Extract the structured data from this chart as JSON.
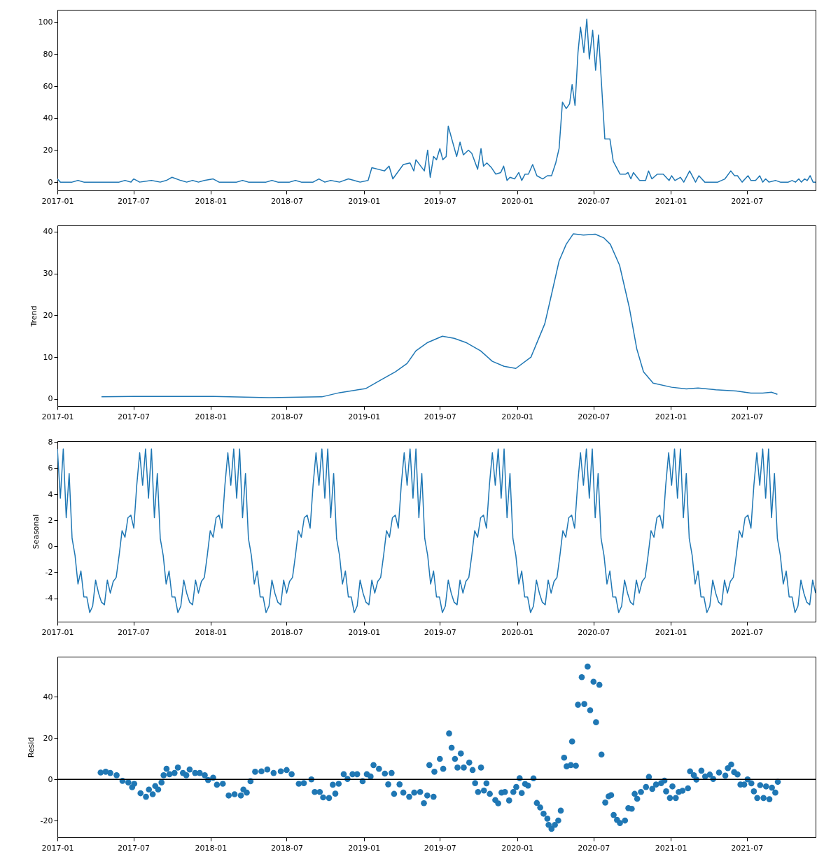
{
  "chart_data": [
    {
      "type": "line",
      "color": "#1f77b4",
      "xlim": [
        "2017-01-01",
        "2021-12-12"
      ],
      "ylim": [
        -5.2,
        107.8
      ],
      "xticks": [
        "2017-01",
        "2017-07",
        "2018-01",
        "2018-07",
        "2019-01",
        "2019-07",
        "2020-01",
        "2020-07",
        "2021-01",
        "2021-07"
      ],
      "yticks": [
        0,
        20,
        40,
        60,
        80,
        100
      ],
      "x": [
        "2017-01-01",
        "2017-01-08",
        "2017-02-05",
        "2017-02-19",
        "2017-03-05",
        "2017-05-28",
        "2017-06-11",
        "2017-06-25",
        "2017-07-02",
        "2017-07-16",
        "2017-08-13",
        "2017-09-03",
        "2017-09-17",
        "2017-10-01",
        "2017-10-22",
        "2017-11-05",
        "2017-11-19",
        "2017-12-03",
        "2017-12-17",
        "2018-01-07",
        "2018-01-21",
        "2018-03-04",
        "2018-03-18",
        "2018-04-01",
        "2018-05-13",
        "2018-05-27",
        "2018-06-10",
        "2018-07-08",
        "2018-07-22",
        "2018-08-05",
        "2018-09-02",
        "2018-09-16",
        "2018-09-30",
        "2018-10-14",
        "2018-11-04",
        "2018-11-25",
        "2018-12-09",
        "2018-12-23",
        "2019-01-11",
        "2019-01-20",
        "2019-02-19",
        "2019-03-02",
        "2019-03-11",
        "2019-04-05",
        "2019-04-21",
        "2019-04-30",
        "2019-05-05",
        "2019-05-25",
        "2019-06-02",
        "2019-06-08",
        "2019-06-16",
        "2019-06-23",
        "2019-07-01",
        "2019-07-08",
        "2019-07-16",
        "2019-07-21",
        "2019-08-10",
        "2019-08-18",
        "2019-08-26",
        "2019-09-07",
        "2019-09-15",
        "2019-09-29",
        "2019-10-07",
        "2019-10-13",
        "2019-10-21",
        "2019-11-01",
        "2019-11-11",
        "2019-11-23",
        "2019-11-30",
        "2019-12-08",
        "2019-12-15",
        "2019-12-26",
        "2020-01-05",
        "2020-01-12",
        "2020-01-20",
        "2020-01-28",
        "2020-02-07",
        "2020-02-17",
        "2020-03-02",
        "2020-03-13",
        "2020-03-23",
        "2020-04-02",
        "2020-04-10",
        "2020-04-18",
        "2020-04-27",
        "2020-05-05",
        "2020-05-11",
        "2020-05-18",
        "2020-05-25",
        "2020-05-31",
        "2020-06-08",
        "2020-06-15",
        "2020-06-21",
        "2020-06-29",
        "2020-07-06",
        "2020-07-13",
        "2020-07-28",
        "2020-08-09",
        "2020-08-17",
        "2020-09-02",
        "2020-09-16",
        "2020-09-21",
        "2020-09-28",
        "2020-10-04",
        "2020-10-19",
        "2020-11-02",
        "2020-11-09",
        "2020-11-17",
        "2020-11-30",
        "2020-12-14",
        "2020-12-28",
        "2021-01-03",
        "2021-01-11",
        "2021-01-24",
        "2021-02-01",
        "2021-02-15",
        "2021-03-01",
        "2021-03-09",
        "2021-03-23",
        "2021-04-23",
        "2021-05-10",
        "2021-05-24",
        "2021-06-02",
        "2021-06-09",
        "2021-06-20",
        "2021-07-04",
        "2021-07-11",
        "2021-07-22",
        "2021-08-01",
        "2021-08-08",
        "2021-08-15",
        "2021-08-23",
        "2021-09-08",
        "2021-09-19",
        "2021-10-08",
        "2021-10-17",
        "2021-10-25",
        "2021-11-02",
        "2021-11-08",
        "2021-11-16",
        "2021-11-22",
        "2021-11-29",
        "2021-12-06",
        "2021-12-12"
      ],
      "values": [
        2,
        0,
        0,
        1,
        0,
        0,
        1,
        0,
        2,
        0,
        1,
        0,
        1,
        3,
        1,
        0,
        1,
        0,
        1,
        2,
        0,
        0,
        1,
        0,
        0,
        1,
        0,
        0,
        1,
        0,
        0,
        2,
        0,
        1,
        0,
        2,
        1,
        0,
        1,
        9,
        7,
        10,
        2,
        11,
        12,
        7,
        14,
        7,
        20,
        3,
        16,
        14,
        21,
        14,
        16,
        35,
        16,
        25,
        17,
        20,
        18,
        8,
        21,
        10,
        12,
        9,
        5,
        6,
        10,
        1,
        3,
        2,
        6,
        1,
        5,
        5,
        11,
        4,
        2,
        4,
        4,
        12,
        21,
        50,
        46,
        49,
        61,
        48,
        81,
        97,
        81,
        102,
        77,
        95,
        70,
        92,
        27,
        27,
        13,
        5,
        5,
        6,
        2,
        6,
        1,
        1,
        7,
        2,
        5,
        5,
        1,
        4,
        1,
        3,
        0,
        7,
        0,
        4,
        0,
        0,
        2,
        7,
        4,
        4,
        0,
        4,
        1,
        1,
        4,
        0,
        2,
        0,
        1,
        0,
        0,
        1,
        0,
        2,
        0,
        2,
        1,
        4,
        0,
        0
      ]
    },
    {
      "type": "line",
      "color": "#1f77b4",
      "ylabel": "Trend",
      "xlim": [
        "2017-01-01",
        "2021-12-12"
      ],
      "ylim": [
        -1.7,
        41.5
      ],
      "xticks": [
        "2017-01",
        "2017-07",
        "2018-01",
        "2018-07",
        "2019-01",
        "2019-07",
        "2020-01",
        "2020-07",
        "2021-01",
        "2021-07"
      ],
      "yticks": [
        0,
        10,
        20,
        30,
        40
      ],
      "x": [
        "2017-04-16",
        "2017-07-02",
        "2018-01-07",
        "2018-05-20",
        "2018-09-23",
        "2018-11-04",
        "2019-01-06",
        "2019-02-10",
        "2019-03-17",
        "2019-04-14",
        "2019-05-05",
        "2019-06-02",
        "2019-07-07",
        "2019-08-04",
        "2019-09-01",
        "2019-10-06",
        "2019-11-03",
        "2019-12-01",
        "2019-12-29",
        "2020-02-03",
        "2020-03-07",
        "2020-03-23",
        "2020-04-10",
        "2020-04-27",
        "2020-05-14",
        "2020-06-07",
        "2020-07-05",
        "2020-07-26",
        "2020-08-10",
        "2020-09-01",
        "2020-09-24",
        "2020-10-12",
        "2020-10-28",
        "2020-11-20",
        "2021-01-03",
        "2021-02-07",
        "2021-03-07",
        "2021-04-18",
        "2021-06-06",
        "2021-07-11",
        "2021-08-08",
        "2021-08-29",
        "2021-09-12"
      ],
      "values": [
        0.5,
        0.6,
        0.6,
        0.3,
        0.5,
        1.5,
        2.5,
        4.5,
        6.5,
        8.5,
        11.5,
        13.5,
        15,
        14.5,
        13.5,
        11.5,
        9,
        7.8,
        7.3,
        10,
        18,
        25,
        33,
        37,
        39.5,
        39.2,
        39.4,
        38.5,
        37,
        32,
        22,
        12,
        6.5,
        3.8,
        2.8,
        2.4,
        2.6,
        2.2,
        1.9,
        1.4,
        1.4,
        1.6,
        1.1
      ]
    },
    {
      "type": "line",
      "color": "#1f77b4",
      "ylabel": "Seasonal",
      "xlim": [
        "2017-01-01",
        "2021-12-12"
      ],
      "ylim": [
        -5.8,
        8.1
      ],
      "xticks": [
        "2017-01",
        "2017-07",
        "2018-01",
        "2018-07",
        "2019-01",
        "2019-07",
        "2020-01",
        "2020-07",
        "2021-01",
        "2021-07"
      ],
      "yticks": [
        -4,
        -2,
        0,
        2,
        4,
        6,
        8
      ],
      "x": [
        "2017-01-01",
        "2017-01-08",
        "2017-01-15",
        "2017-01-22",
        "2017-01-29",
        "2017-02-05",
        "2017-02-12",
        "2017-02-19",
        "2017-02-26",
        "2017-03-05",
        "2017-03-12",
        "2017-03-19",
        "2017-03-26",
        "2017-04-02",
        "2017-04-09",
        "2017-04-16",
        "2017-04-23",
        "2017-04-30",
        "2017-05-07",
        "2017-05-14",
        "2017-05-21",
        "2017-05-28",
        "2017-06-04",
        "2017-06-11",
        "2017-06-18",
        "2017-06-25",
        "2017-07-02",
        "2017-07-09",
        "2017-07-16",
        "2017-07-23",
        "2017-07-30",
        "2017-08-06",
        "2017-08-13",
        "2017-08-20",
        "2017-08-27",
        "2017-09-03",
        "2017-09-10",
        "2017-09-17",
        "2017-09-24",
        "2017-10-01",
        "2017-10-08",
        "2017-10-15",
        "2017-10-22",
        "2017-10-29",
        "2017-11-05",
        "2017-11-12",
        "2017-11-19",
        "2017-11-26",
        "2017-12-03",
        "2017-12-10",
        "2017-12-17",
        "2017-12-24",
        "2017-12-31",
        "2018-01-07",
        "2018-01-14",
        "2018-01-21",
        "2018-01-28",
        "2018-02-04",
        "2018-02-11",
        "2018-02-18",
        "2018-02-25",
        "2018-03-04",
        "2018-03-11",
        "2018-03-18",
        "2018-03-25",
        "2018-04-01",
        "2018-04-08",
        "2018-04-15",
        "2018-04-22",
        "2018-04-29",
        "2018-05-06",
        "2018-05-13",
        "2018-05-20",
        "2018-05-27",
        "2018-06-03",
        "2018-06-10",
        "2018-06-17",
        "2018-06-24",
        "2018-07-01",
        "2018-07-08",
        "2018-07-15",
        "2018-07-22",
        "2018-07-29",
        "2018-08-05",
        "2018-08-12",
        "2018-08-19",
        "2018-08-26",
        "2018-09-02",
        "2018-09-09",
        "2018-09-16",
        "2018-09-23",
        "2018-09-30",
        "2018-10-07",
        "2018-10-14",
        "2018-10-21",
        "2018-10-28",
        "2018-11-04",
        "2018-11-11",
        "2018-11-18",
        "2018-11-25",
        "2018-12-02",
        "2018-12-09",
        "2018-12-16",
        "2018-12-23",
        "2018-12-30",
        "2019-01-06",
        "2019-01-13",
        "2019-01-20",
        "2019-01-27",
        "2019-02-03",
        "2019-02-10",
        "2019-02-17",
        "2019-02-24",
        "2019-03-03",
        "2019-03-10",
        "2019-03-17",
        "2019-03-24",
        "2019-03-31",
        "2019-04-07",
        "2019-04-14",
        "2019-04-21",
        "2019-04-28",
        "2019-05-05",
        "2019-05-12",
        "2019-05-19",
        "2019-05-26",
        "2019-06-02",
        "2019-06-09",
        "2019-06-16",
        "2019-06-23",
        "2019-06-30",
        "2019-07-07",
        "2019-07-14",
        "2019-07-21",
        "2019-07-28",
        "2019-08-04",
        "2019-08-11",
        "2019-08-18",
        "2019-08-25",
        "2019-09-01",
        "2019-09-08",
        "2019-09-15",
        "2019-09-22",
        "2019-09-29",
        "2019-10-06",
        "2019-10-13",
        "2019-10-20",
        "2019-10-27",
        "2019-11-03",
        "2019-11-10",
        "2019-11-17",
        "2019-11-24",
        "2019-12-01",
        "2019-12-08",
        "2019-12-15",
        "2019-12-22",
        "2019-12-29",
        "2020-01-05",
        "2020-01-12",
        "2020-01-19",
        "2020-01-26",
        "2020-02-02",
        "2020-02-09",
        "2020-02-16",
        "2020-02-23",
        "2020-03-01",
        "2020-03-08",
        "2020-03-15",
        "2020-03-22",
        "2020-03-29",
        "2020-04-05",
        "2020-04-12",
        "2020-04-19",
        "2020-04-26",
        "2020-05-03",
        "2020-05-10",
        "2020-05-17",
        "2020-05-24",
        "2020-05-31",
        "2020-06-07",
        "2020-06-14",
        "2020-06-21",
        "2020-06-28",
        "2020-07-05",
        "2020-07-12",
        "2020-07-19",
        "2020-07-26",
        "2020-08-02",
        "2020-08-09",
        "2020-08-16",
        "2020-08-23",
        "2020-08-30",
        "2020-09-06",
        "2020-09-13",
        "2020-09-20",
        "2020-09-27",
        "2020-10-04",
        "2020-10-11",
        "2020-10-18",
        "2020-10-25",
        "2020-11-01",
        "2020-11-08",
        "2020-11-15",
        "2020-11-22",
        "2020-11-29",
        "2020-12-06",
        "2020-12-13",
        "2020-12-20",
        "2020-12-27",
        "2021-01-03",
        "2021-01-10",
        "2021-01-17",
        "2021-01-24",
        "2021-01-31",
        "2021-02-07",
        "2021-02-14",
        "2021-02-21",
        "2021-02-28",
        "2021-03-07",
        "2021-03-14",
        "2021-03-21",
        "2021-03-28",
        "2021-04-04",
        "2021-04-11",
        "2021-04-18",
        "2021-04-25",
        "2021-05-02",
        "2021-05-09",
        "2021-05-16",
        "2021-05-23",
        "2021-05-30",
        "2021-06-06",
        "2021-06-13",
        "2021-06-20",
        "2021-06-27",
        "2021-07-04",
        "2021-07-11",
        "2021-07-18",
        "2021-07-25",
        "2021-08-01",
        "2021-08-08",
        "2021-08-15",
        "2021-08-22",
        "2021-08-29",
        "2021-09-05",
        "2021-09-12",
        "2021-09-19",
        "2021-09-26",
        "2021-10-03",
        "2021-10-10",
        "2021-10-17",
        "2021-10-24",
        "2021-10-31",
        "2021-11-07",
        "2021-11-14",
        "2021-11-21",
        "2021-11-28",
        "2021-12-05",
        "2021-12-12"
      ],
      "values": [
        7.5,
        3.7,
        7.5,
        2.2,
        5.6,
        0.6,
        -0.7,
        -2.9,
        -1.9,
        -3.9,
        -3.9,
        -5.1,
        -4.6,
        -2.6,
        -3.6,
        -4.3,
        -4.5,
        -2.6,
        -3.6,
        -2.7,
        -2.4,
        -0.7,
        1.2,
        0.7,
        2.2,
        2.4,
        1.4,
        4.7,
        7.2,
        4.7,
        7.5,
        3.7,
        7.5,
        2.2,
        5.6,
        0.6,
        -0.7,
        -2.9,
        -1.9,
        -3.9,
        -3.9,
        -5.1,
        -4.6,
        -2.6,
        -3.6,
        -4.3,
        -4.5,
        -2.6,
        -3.6,
        -2.7,
        -2.4,
        -0.7,
        1.2,
        0.7,
        2.2,
        2.4,
        1.4,
        4.7,
        7.2,
        4.7,
        7.5,
        3.7,
        7.5,
        2.2,
        5.6,
        0.6,
        -0.7,
        -2.9,
        -1.9,
        -3.9,
        -3.9,
        -5.1,
        -4.6,
        -2.6,
        -3.6,
        -4.3,
        -4.5,
        -2.6,
        -3.6,
        -2.7,
        -2.4,
        -0.7,
        1.2,
        0.7,
        2.2,
        2.4,
        1.4,
        4.7,
        7.2,
        4.7,
        7.5,
        3.7,
        7.5,
        2.2,
        5.6,
        0.6,
        -0.7,
        -2.9,
        -1.9,
        -3.9,
        -3.9,
        -5.1,
        -4.6,
        -2.6,
        -3.6,
        -4.3,
        -4.5,
        -2.6,
        -3.6,
        -2.7,
        -2.4,
        -0.7,
        1.2,
        0.7,
        2.2,
        2.4,
        1.4,
        4.7,
        7.2,
        4.7,
        7.5,
        3.7,
        7.5,
        2.2,
        5.6,
        0.6,
        -0.7,
        -2.9,
        -1.9,
        -3.9,
        -3.9,
        -5.1,
        -4.6,
        -2.6,
        -3.6,
        -4.3,
        -4.5,
        -2.6,
        -3.6,
        -2.7,
        -2.4,
        -0.7,
        1.2,
        0.7,
        2.2,
        2.4,
        1.4,
        4.7,
        7.2,
        4.7,
        7.5,
        3.7,
        7.5,
        2.2,
        5.6,
        0.6,
        -0.7,
        -2.9,
        -1.9,
        -3.9,
        -3.9,
        -5.1,
        -4.6,
        -2.6,
        -3.6,
        -4.3,
        -4.5,
        -2.6,
        -3.6,
        -2.7,
        -2.4,
        -0.7,
        1.2,
        0.7,
        2.2,
        2.4,
        1.4,
        4.7,
        7.2,
        4.7,
        7.5,
        3.7,
        7.5,
        2.2,
        5.6,
        0.6,
        -0.7,
        -2.9,
        -1.9,
        -3.9,
        -3.9,
        -5.1,
        -4.6,
        -2.6,
        -3.6,
        -4.3,
        -4.5,
        -2.6,
        -3.6,
        -2.7,
        -2.4,
        -0.7,
        1.2,
        0.7,
        2.2,
        2.4,
        1.4,
        4.7,
        7.2,
        4.7,
        7.5,
        3.7,
        7.5,
        2.2,
        5.6,
        0.6,
        -0.7,
        -2.9,
        -1.9,
        -3.9,
        -3.9,
        -5.1,
        -4.6,
        -2.6,
        -3.6,
        -4.3,
        -4.5,
        -2.6,
        -3.6,
        -2.7,
        -2.4,
        -0.7,
        1.2,
        0.7,
        2.2,
        2.4,
        1.4,
        4.7,
        7.2,
        4.7,
        7.5,
        3.7,
        7.5,
        2.2,
        5.6,
        0.6,
        -0.7,
        -2.9,
        -1.9,
        -3.9,
        -3.9,
        -5.1,
        -4.6,
        -2.6,
        -3.6,
        -4.3,
        -4.5,
        -2.6,
        -3.6
      ]
    },
    {
      "type": "scatter",
      "color": "#1f77b4",
      "marker": "circle",
      "ylabel": "Resid",
      "xlim": [
        "2017-01-01",
        "2021-12-12"
      ],
      "ylim": [
        -28,
        59.3
      ],
      "xticks": [
        "2017-01",
        "2017-07",
        "2018-01",
        "2018-07",
        "2019-01",
        "2019-07",
        "2020-01",
        "2020-07",
        "2021-01",
        "2021-07"
      ],
      "yticks": [
        -20,
        0,
        20,
        40
      ],
      "ref_lines": [
        {
          "axis": "y",
          "value": 0,
          "color": "#000000"
        }
      ],
      "x": [
        "2017-04-14",
        "2017-04-26",
        "2017-05-07",
        "2017-05-22",
        "2017-06-05",
        "2017-06-19",
        "2017-06-28",
        "2017-07-03",
        "2017-07-18",
        "2017-07-31",
        "2017-08-07",
        "2017-08-16",
        "2017-08-22",
        "2017-08-29",
        "2017-09-06",
        "2017-09-11",
        "2017-09-18",
        "2017-09-25",
        "2017-10-07",
        "2017-10-15",
        "2017-10-27",
        "2017-11-04",
        "2017-11-12",
        "2017-11-25",
        "2017-12-06",
        "2017-12-18",
        "2017-12-26",
        "2018-01-07",
        "2018-01-16",
        "2018-01-30",
        "2018-02-13",
        "2018-02-27",
        "2018-03-14",
        "2018-03-20",
        "2018-03-28",
        "2018-04-06",
        "2018-04-17",
        "2018-05-02",
        "2018-05-16",
        "2018-05-31",
        "2018-06-17",
        "2018-07-01",
        "2018-07-13",
        "2018-07-30",
        "2018-08-11",
        "2018-08-29",
        "2018-09-06",
        "2018-09-18",
        "2018-09-26",
        "2018-10-10",
        "2018-10-19",
        "2018-10-25",
        "2018-11-02",
        "2018-11-14",
        "2018-11-23",
        "2018-12-05",
        "2018-12-16",
        "2018-12-29",
        "2019-01-08",
        "2019-01-17",
        "2019-01-24",
        "2019-02-06",
        "2019-02-20",
        "2019-02-28",
        "2019-03-08",
        "2019-03-14",
        "2019-03-27",
        "2019-04-05",
        "2019-04-19",
        "2019-05-01",
        "2019-05-15",
        "2019-05-24",
        "2019-06-01",
        "2019-06-06",
        "2019-06-16",
        "2019-06-18",
        "2019-07-01",
        "2019-07-09",
        "2019-07-23",
        "2019-07-29",
        "2019-08-06",
        "2019-08-12",
        "2019-08-20",
        "2019-08-27",
        "2019-09-09",
        "2019-09-17",
        "2019-09-23",
        "2019-09-30",
        "2019-10-07",
        "2019-10-14",
        "2019-10-20",
        "2019-10-28",
        "2019-11-10",
        "2019-11-17",
        "2019-11-25",
        "2019-12-03",
        "2019-12-13",
        "2019-12-23",
        "2019-12-30",
        "2020-01-07",
        "2020-01-12",
        "2020-01-20",
        "2020-01-27",
        "2020-02-09",
        "2020-02-17",
        "2020-02-25",
        "2020-03-04",
        "2020-03-13",
        "2020-03-16",
        "2020-03-23",
        "2020-03-31",
        "2020-04-08",
        "2020-04-14",
        "2020-04-22",
        "2020-04-28",
        "2020-05-08",
        "2020-05-11",
        "2020-05-20",
        "2020-05-25",
        "2020-06-03",
        "2020-06-09",
        "2020-06-17",
        "2020-06-23",
        "2020-07-01",
        "2020-07-07",
        "2020-07-15",
        "2020-07-20",
        "2020-07-29",
        "2020-08-06",
        "2020-08-12",
        "2020-08-18",
        "2020-08-26",
        "2020-09-02",
        "2020-09-14",
        "2020-09-22",
        "2020-09-30",
        "2020-10-07",
        "2020-10-13",
        "2020-10-22",
        "2020-11-03",
        "2020-11-10",
        "2020-11-18",
        "2020-11-27",
        "2020-12-09",
        "2020-12-17",
        "2020-12-21",
        "2020-12-30",
        "2021-01-05",
        "2021-01-13",
        "2021-01-20",
        "2021-01-29",
        "2021-02-11",
        "2021-02-16",
        "2021-02-25",
        "2021-03-03",
        "2021-03-15",
        "2021-03-24",
        "2021-04-04",
        "2021-04-12",
        "2021-04-26",
        "2021-05-11",
        "2021-05-17",
        "2021-05-25",
        "2021-06-01",
        "2021-06-09",
        "2021-06-16",
        "2021-06-25",
        "2021-07-03",
        "2021-07-12",
        "2021-07-18",
        "2021-07-26",
        "2021-08-02",
        "2021-08-10",
        "2021-08-16",
        "2021-08-24",
        "2021-08-30",
        "2021-09-07",
        "2021-09-13"
      ],
      "values": [
        3.3,
        3.7,
        3.1,
        2.0,
        -0.7,
        -1.5,
        -3.8,
        -2.1,
        -6.7,
        -8.4,
        -4.9,
        -7.2,
        -3.2,
        -4.9,
        -1.5,
        2.0,
        5.1,
        2.5,
        3.1,
        5.7,
        3.1,
        2.0,
        4.8,
        3.1,
        3.1,
        2.0,
        -0.3,
        0.8,
        -2.6,
        -2.1,
        -7.8,
        -7.2,
        -7.8,
        -4.9,
        -6.4,
        -0.9,
        3.7,
        3.9,
        4.8,
        3.1,
        3.9,
        4.5,
        2.5,
        -2.1,
        -1.8,
        0,
        -6.1,
        -6.1,
        -8.7,
        -9.0,
        -2.6,
        -6.9,
        -2.1,
        2.5,
        0.2,
        2.5,
        2.5,
        -0.9,
        2.5,
        1.4,
        6.9,
        5.1,
        2.8,
        -2.4,
        3.1,
        -7.0,
        -2.4,
        -6.4,
        -8.4,
        -6.4,
        -6.1,
        -11.5,
        -7.8,
        6.9,
        -8.4,
        3.7,
        9.9,
        5.1,
        22.2,
        15.3,
        9.9,
        5.7,
        12.5,
        5.7,
        8.1,
        4.5,
        -1.8,
        -6.1,
        5.7,
        -5.4,
        -1.9,
        -7.0,
        -10,
        -11.6,
        -6.4,
        -6.1,
        -10.2,
        -6.1,
        -3.7,
        0.6,
        -6.6,
        -2.2,
        -3.0,
        0.5,
        -11.4,
        -13.6,
        -16.6,
        -19.0,
        -22.0,
        -23.9,
        -22.0,
        -19.9,
        -15.1,
        10.5,
        6.3,
        6.9,
        18.3,
        6.6,
        36.1,
        49.4,
        36.4,
        54.5,
        33.4,
        47.2,
        27.6,
        45.7,
        12.0,
        -11.2,
        -8.2,
        -7.6,
        -17.2,
        -19.6,
        -21.1,
        -19.9,
        -13.9,
        -14.2,
        -7.0,
        -9.4,
        -6.1,
        -3.7,
        1.2,
        -4.6,
        -2.5,
        -1.8,
        -0.6,
        -5.8,
        -9.0,
        -3.4,
        -9.0,
        -6.1,
        -5.5,
        -4.3,
        3.9,
        2.0,
        -0.1,
        4.2,
        1.4,
        2.3,
        0.2,
        3.3,
        1.8,
        5.4,
        7.2,
        3.5,
        2.4,
        -2.5,
        -2.5,
        0,
        -1.9,
        -5.8,
        -9.0,
        -2.8,
        -9.0,
        -3.4,
        -9.6,
        -4.0,
        -6.4,
        -1.2
      ]
    }
  ]
}
